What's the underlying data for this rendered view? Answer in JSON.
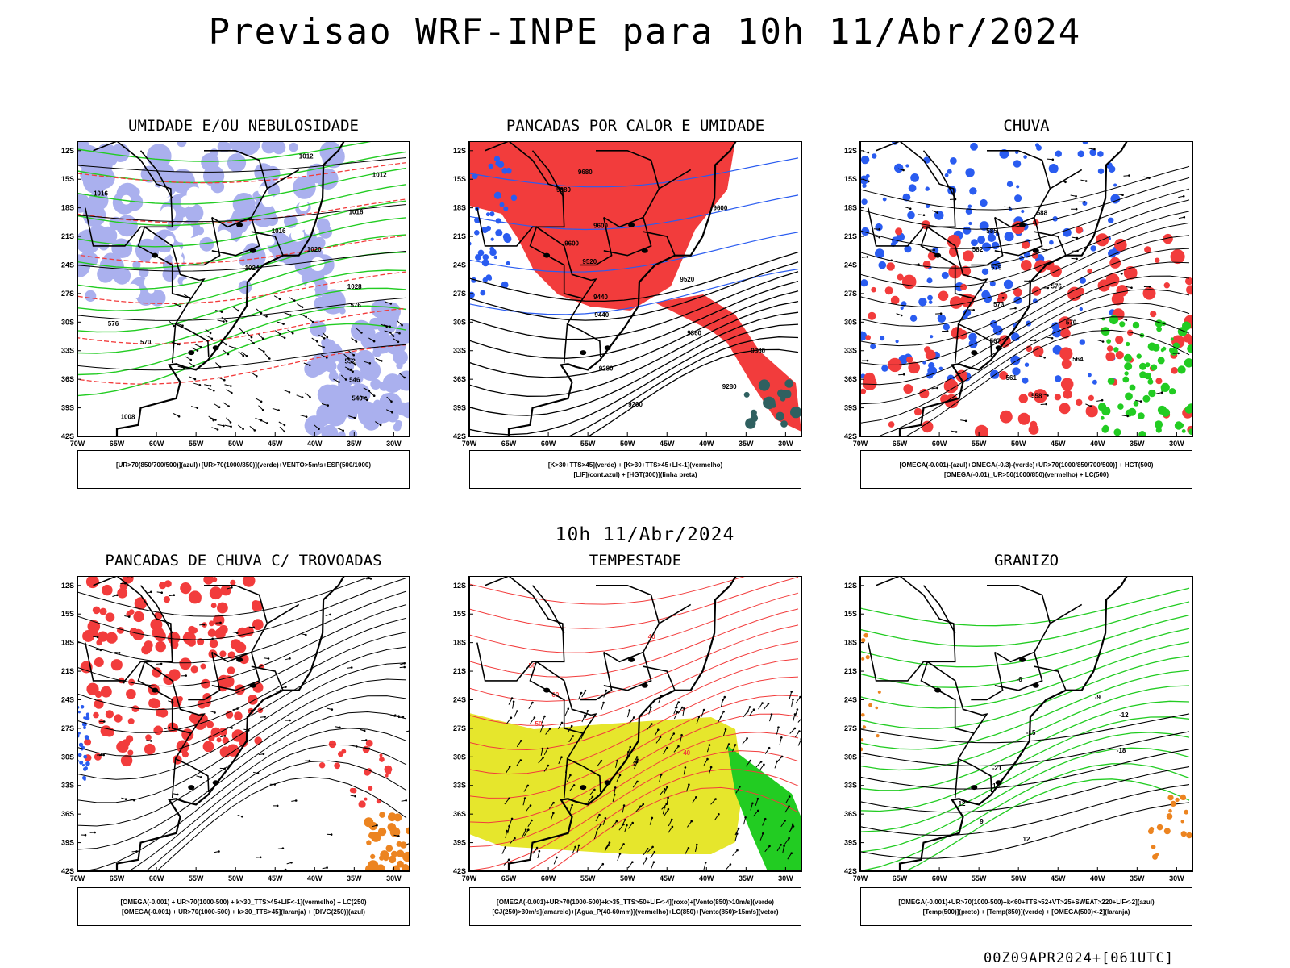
{
  "page": {
    "title": "Previsao WRF-INPE  para 10h 11/Abr/2024",
    "mid_date": "10h 11/Abr/2024",
    "footer": "00Z09APR2024+[061UTC]"
  },
  "axes": {
    "lat_labels": [
      "12S",
      "15S",
      "18S",
      "21S",
      "24S",
      "27S",
      "30S",
      "33S",
      "36S",
      "39S",
      "42S"
    ],
    "lon_labels": [
      "70W",
      "65W",
      "60W",
      "55W",
      "50W",
      "45W",
      "40W",
      "35W",
      "30W"
    ]
  },
  "colors": {
    "red": "#f23c3c",
    "blue": "#2a5cf0",
    "green": "#22cc22",
    "lavender": "#aab0ee",
    "yellow": "#e6e62c",
    "orange": "#ec8420",
    "teal": "#2f6060"
  },
  "panels": [
    {
      "id": "umidade",
      "title": "UMIDADE E/OU NEBULOSIDADE",
      "legend": [
        "[UR>70(850/700/500)](azul)+[UR>70(1000/850)](verde)+VENTO>5m/s+ESP(500/1000)"
      ],
      "labels": [
        "1012",
        "1012",
        "1016",
        "1016",
        "1016",
        "1020",
        "1024",
        "1028",
        "576",
        "576",
        "570",
        "552",
        "546",
        "540",
        "1008"
      ]
    },
    {
      "id": "pancadas-calor",
      "title": "PANCADAS POR CALOR E UMIDADE",
      "legend": [
        "[K>30+TTS>45](verde) + [K>30+TTS>45+LI<-1](vermelho)",
        "[LIF](cont.azul) + [HGT(300)](linha preta)"
      ],
      "labels": [
        "9680",
        "9680",
        "9600",
        "9600",
        "9600",
        "9520",
        "9520",
        "9440",
        "9440",
        "9360",
        "9360",
        "9280",
        "9280",
        "9200"
      ]
    },
    {
      "id": "chuva",
      "title": "CHUVA",
      "legend": [
        "[OMEGA(-0.001)-(azul)+OMEGA(-0.3)-(verde)+UR>70(1000/850/700/500)] + HGT(500)",
        "[OMEGA(-0.01)_UR>50(1000/850)(vermelho) + LC(500)"
      ],
      "labels": [
        "588",
        "585",
        "582",
        "579",
        "576",
        "573",
        "570",
        "567",
        "564",
        "561",
        "558"
      ]
    },
    {
      "id": "trovoadas",
      "title": "PANCADAS DE CHUVA C/ TROVOADAS",
      "legend": [
        "[OMEGA(-0.001) + UR>70(1000-500) + k>30_TTS>45+LIF<-1](vermelho) + LC(250)",
        "[OMEGA(-0.001) + UR>70(1000-500) + k>30_TTS>45](laranja) + [DIVG(250)](azul)"
      ],
      "labels": []
    },
    {
      "id": "tempestade",
      "title": "TEMPESTADE",
      "legend": [
        "[OMEGA(-0.001)+UR>70(1000-500)+k>35_TTS>50+LIF<-4](roxo)+[Vento(850)>10m/s](verde)",
        "[CJ(250)>30m/s](amarelo)+[Agua_P(40-60mm)](vermelho)+LC(850)+[Vento(850)>15m/s](vetor)"
      ],
      "labels": [
        "40",
        "50",
        "60",
        "50",
        "40"
      ]
    },
    {
      "id": "granizo",
      "title": "GRANIZO",
      "legend": [
        "[OMEGA(-0.001)+UR>70(1000-500)+k<60+TTS>52+VT>25+SWEAT>220+LIF<-2](azul)",
        "[Temp(500)](preto) + [Temp(850)](verde) + [OMEGA(500)<-2](laranja)"
      ],
      "labels": [
        "-6",
        "-9",
        "-12",
        "-15",
        "-18",
        "-21",
        "15",
        "12",
        "9",
        "12"
      ]
    }
  ]
}
